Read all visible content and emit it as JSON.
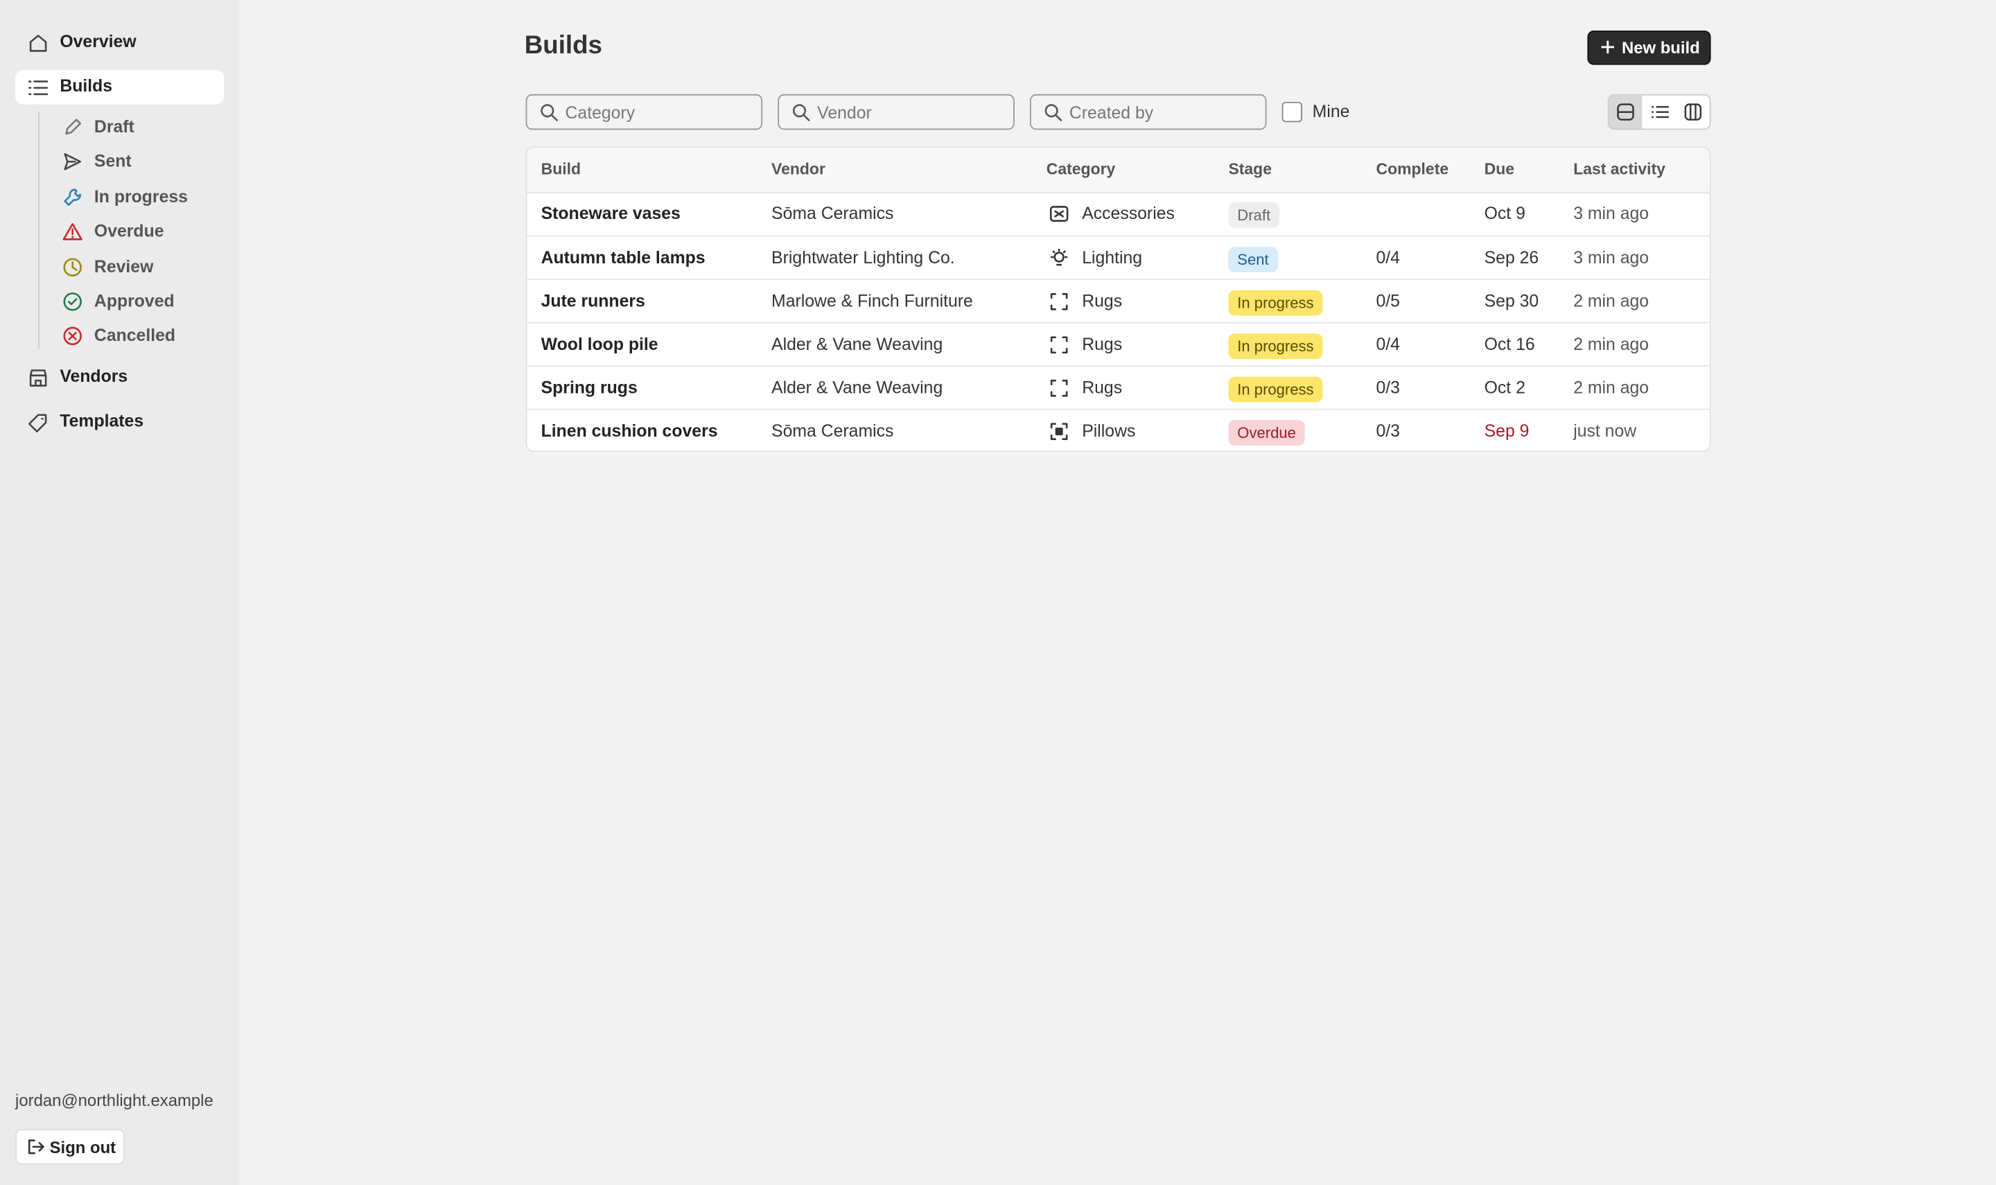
{
  "sidebar": {
    "nav": [
      {
        "label": "Overview"
      },
      {
        "label": "Builds",
        "children": [
          "Draft",
          "Sent",
          "In progress",
          "Overdue",
          "Review",
          "Approved",
          "Cancelled"
        ]
      },
      {
        "label": "Vendors"
      },
      {
        "label": "Templates"
      }
    ],
    "user_email": "jordan@northlight.example",
    "sign_out": "Sign out"
  },
  "header": {
    "title": "Builds",
    "new_button": "New build"
  },
  "filters": {
    "placeholders": [
      "Category",
      "Vendor",
      "Created by"
    ],
    "mine": "Mine"
  },
  "table": {
    "columns": [
      "Build",
      "Vendor",
      "Category",
      "Stage",
      "Complete",
      "Due",
      "Last activity"
    ],
    "rows": [
      {
        "build": "Stoneware vases",
        "vendor": "Sōma Ceramics",
        "category": "Accessories",
        "stage": "Draft",
        "due": "Oct 9",
        "last_activity": "3 min ago"
      },
      {
        "build": "Autumn table lamps",
        "vendor": "Brightwater Lighting Co.",
        "category": "Lighting",
        "stage": "Sent",
        "complete": "0/4",
        "due": "Sep 26",
        "last_activity": "3 min ago"
      },
      {
        "build": "Jute runners",
        "vendor": "Marlowe & Finch Furniture",
        "category": "Rugs",
        "stage": "In progress",
        "complete": "0/5",
        "due": "Sep 30",
        "last_activity": "2 min ago"
      },
      {
        "build": "Wool loop pile",
        "vendor": "Alder & Vane Weaving",
        "category": "Rugs",
        "stage": "In progress",
        "complete": "0/4",
        "due": "Oct 16",
        "last_activity": "2 min ago"
      },
      {
        "build": "Spring rugs",
        "vendor": "Alder & Vane Weaving",
        "category": "Rugs",
        "stage": "In progress",
        "complete": "0/3",
        "due": "Oct 2",
        "last_activity": "2 min ago"
      },
      {
        "build": "Linen cushion covers",
        "vendor": "Sōma Ceramics",
        "category": "Pillows",
        "stage": "Overdue",
        "complete": "0/3",
        "due": "Sep 9",
        "last_activity": "just now"
      }
    ]
  }
}
